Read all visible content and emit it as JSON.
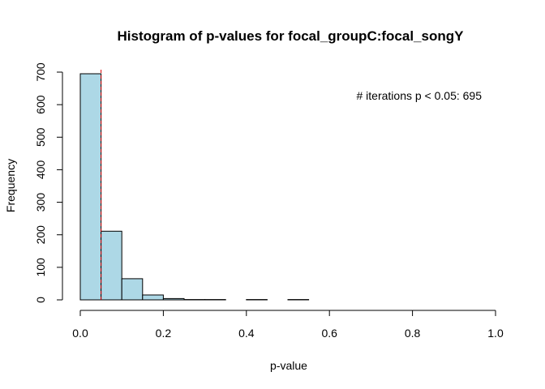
{
  "chart_data": {
    "type": "bar",
    "title": "Histogram of p-values for focal_groupC:focal_songY",
    "xlabel": "p-value",
    "ylabel": "Frequency",
    "xlim": [
      0,
      1
    ],
    "ylim": [
      0,
      700
    ],
    "x_ticks": [
      "0.0",
      "0.2",
      "0.4",
      "0.6",
      "0.8",
      "1.0"
    ],
    "x_tick_values": [
      0,
      0.2,
      0.4,
      0.6,
      0.8,
      1.0
    ],
    "y_ticks": [
      "0",
      "100",
      "200",
      "300",
      "400",
      "500",
      "600",
      "700"
    ],
    "y_tick_values": [
      0,
      100,
      200,
      300,
      400,
      500,
      600,
      700
    ],
    "bins": [
      {
        "start": 0.0,
        "end": 0.05,
        "value": 695
      },
      {
        "start": 0.05,
        "end": 0.1,
        "value": 211
      },
      {
        "start": 0.1,
        "end": 0.15,
        "value": 65
      },
      {
        "start": 0.15,
        "end": 0.2,
        "value": 15
      },
      {
        "start": 0.2,
        "end": 0.25,
        "value": 4
      },
      {
        "start": 0.25,
        "end": 0.3,
        "value": 1
      },
      {
        "start": 0.3,
        "end": 0.35,
        "value": 1
      },
      {
        "start": 0.35,
        "end": 0.4,
        "value": 0
      },
      {
        "start": 0.4,
        "end": 0.45,
        "value": 1
      },
      {
        "start": 0.45,
        "end": 0.5,
        "value": 0
      },
      {
        "start": 0.5,
        "end": 0.55,
        "value": 1
      },
      {
        "start": 0.55,
        "end": 0.6,
        "value": 0
      },
      {
        "start": 0.6,
        "end": 0.65,
        "value": 0
      },
      {
        "start": 0.65,
        "end": 0.7,
        "value": 0
      },
      {
        "start": 0.7,
        "end": 0.75,
        "value": 0
      },
      {
        "start": 0.75,
        "end": 0.8,
        "value": 0
      },
      {
        "start": 0.8,
        "end": 0.85,
        "value": 0
      },
      {
        "start": 0.85,
        "end": 0.9,
        "value": 0
      },
      {
        "start": 0.9,
        "end": 0.95,
        "value": 0
      },
      {
        "start": 0.95,
        "end": 1.0,
        "value": 0
      }
    ],
    "threshold_line": {
      "x": 0.05,
      "color": "#dd0000",
      "style": "dashed"
    },
    "annotation": "# iterations p < 0.05: 695",
    "bar_color": "#add8e6",
    "grid": false
  }
}
